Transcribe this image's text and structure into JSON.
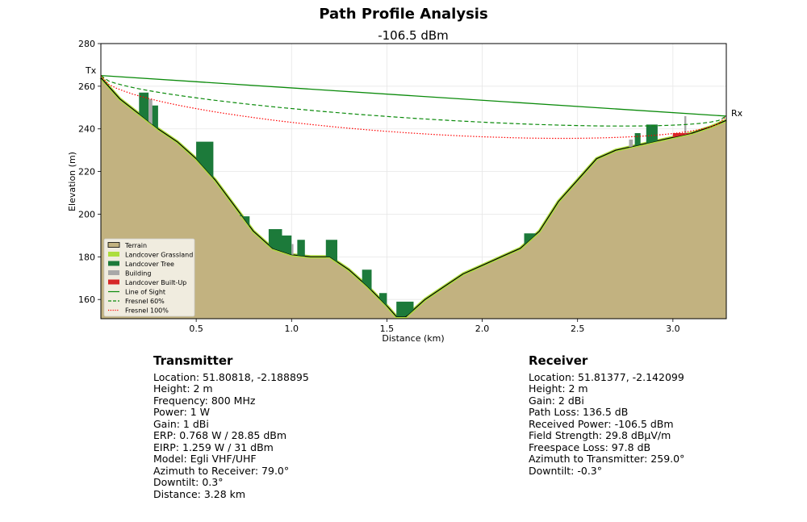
{
  "chart_data": {
    "type": "area",
    "title": "Path Profile Analysis",
    "subtitle": "-106.5 dBm",
    "xlabel": "Distance (km)",
    "ylabel": "Elevation (m)",
    "xlim": [
      0.0,
      3.28
    ],
    "ylim": [
      151,
      280
    ],
    "x_ticks": [
      0.5,
      1.0,
      1.5,
      2.0,
      2.5,
      3.0
    ],
    "x_tick_labels": [
      "0.5",
      "1.0",
      "1.5",
      "2.0",
      "2.5",
      "3.0"
    ],
    "y_ticks": [
      160,
      180,
      200,
      220,
      240,
      260,
      280
    ],
    "y_tick_labels": [
      "160",
      "180",
      "200",
      "220",
      "240",
      "260",
      "280"
    ],
    "grid": true,
    "legend_position": "lower-left",
    "endpoint_labels": {
      "tx": "Tx",
      "rx": "Rx"
    },
    "tx_elevation": 265,
    "rx_elevation": 246,
    "terrain": {
      "x": [
        0.0,
        0.1,
        0.2,
        0.3,
        0.4,
        0.5,
        0.6,
        0.7,
        0.8,
        0.9,
        1.0,
        1.1,
        1.2,
        1.3,
        1.4,
        1.5,
        1.55,
        1.6,
        1.7,
        1.8,
        1.9,
        2.0,
        2.1,
        2.2,
        2.3,
        2.4,
        2.5,
        2.6,
        2.7,
        2.8,
        2.9,
        3.0,
        3.1,
        3.2,
        3.28
      ],
      "y": [
        264,
        254,
        247,
        240,
        234,
        226,
        216,
        204,
        192,
        184,
        181,
        180,
        180,
        174,
        166,
        157,
        152,
        152,
        160,
        166,
        172,
        176,
        180,
        184,
        192,
        206,
        216,
        226,
        230,
        232,
        234,
        236,
        238,
        241,
        244
      ]
    },
    "tree_clutter": [
      {
        "x0": 0.2,
        "x1": 0.25,
        "top": 257
      },
      {
        "x0": 0.26,
        "x1": 0.3,
        "top": 251
      },
      {
        "x0": 0.5,
        "x1": 0.59,
        "top": 234
      },
      {
        "x0": 0.73,
        "x1": 0.78,
        "top": 199
      },
      {
        "x0": 0.88,
        "x1": 0.95,
        "top": 193
      },
      {
        "x0": 0.95,
        "x1": 1.0,
        "top": 190
      },
      {
        "x0": 1.03,
        "x1": 1.07,
        "top": 188
      },
      {
        "x0": 1.18,
        "x1": 1.24,
        "top": 188
      },
      {
        "x0": 1.37,
        "x1": 1.42,
        "top": 174
      },
      {
        "x0": 1.46,
        "x1": 1.5,
        "top": 163
      },
      {
        "x0": 1.55,
        "x1": 1.64,
        "top": 159
      },
      {
        "x0": 2.22,
        "x1": 2.28,
        "top": 191
      },
      {
        "x0": 2.8,
        "x1": 2.83,
        "top": 238
      },
      {
        "x0": 2.86,
        "x1": 2.92,
        "top": 242
      }
    ],
    "buildings": [
      {
        "x0": 0.25,
        "x1": 0.27,
        "top": 254
      },
      {
        "x0": 1.0,
        "x1": 1.01,
        "top": 186
      },
      {
        "x0": 2.77,
        "x1": 2.79,
        "top": 235
      },
      {
        "x0": 3.06,
        "x1": 3.07,
        "top": 246
      }
    ],
    "builtup": [
      {
        "x0": 3.0,
        "x1": 3.1,
        "top": 238
      }
    ],
    "legend": [
      {
        "label": "Terrain",
        "kind": "patch",
        "color": "#c2b280"
      },
      {
        "label": "Landcover Grassland",
        "kind": "patch",
        "color": "#adde3e"
      },
      {
        "label": "Landcover Tree",
        "kind": "patch",
        "color": "#1c7a3a"
      },
      {
        "label": "Building",
        "kind": "patch",
        "color": "#a8a8a8"
      },
      {
        "label": "Landcover Built-Up",
        "kind": "patch",
        "color": "#d62728"
      },
      {
        "label": "Line of Sight",
        "kind": "solid",
        "color": "#0a8a0a"
      },
      {
        "label": "Fresnel 60%",
        "kind": "dashed",
        "color": "#0a8a0a"
      },
      {
        "label": "Fresnel 100%",
        "kind": "dotted",
        "color": "#ff0000"
      }
    ],
    "fresnel_frequency_mhz": 800
  },
  "transmitter": {
    "heading": "Transmitter",
    "lines": [
      "Location: 51.80818, -2.188895",
      "Height: 2 m",
      "Frequency: 800 MHz",
      "Power: 1 W",
      "Gain: 1 dBi",
      "ERP: 0.768 W / 28.85 dBm",
      "EIRP: 1.259 W / 31 dBm",
      "Model: Egli VHF/UHF",
      "Azimuth to Receiver: 79.0°",
      "Downtilt: 0.3°",
      "Distance: 3.28 km"
    ]
  },
  "receiver": {
    "heading": "Receiver",
    "lines": [
      "Location: 51.81377, -2.142099",
      "Height: 2 m",
      "Gain: 2 dBi",
      "Path Loss: 136.5 dB",
      "Received Power: -106.5 dBm",
      "Field Strength: 29.8 dBµV/m",
      "Freespace Loss: 97.8 dB",
      "Azimuth to Transmitter: 259.0°",
      "Downtilt: -0.3°"
    ]
  }
}
